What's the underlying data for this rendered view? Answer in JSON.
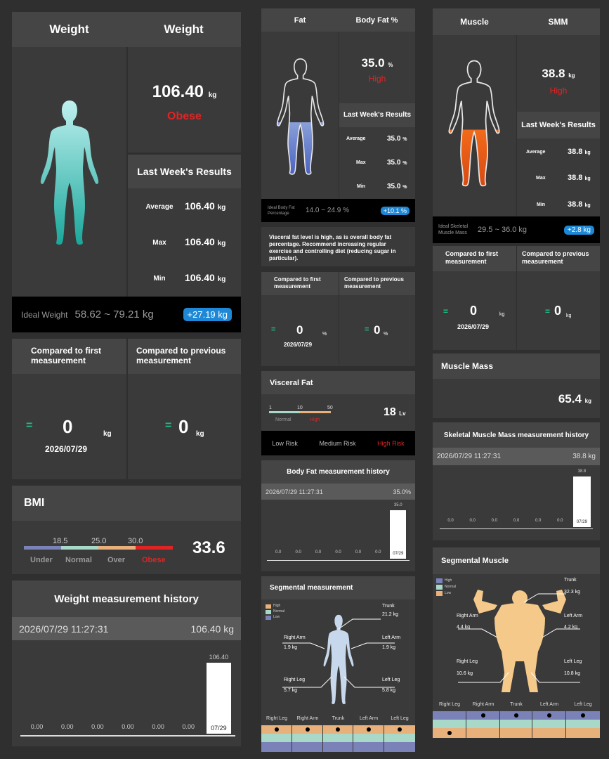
{
  "weight": {
    "title_left": "Weight",
    "title_right": "Weight",
    "value": "106.40",
    "unit": "kg",
    "status": "Obese",
    "last_week_title": "Last Week's Results",
    "avg_label": "Average",
    "avg_value": "106.40",
    "max_label": "Max",
    "max_value": "106.40",
    "min_label": "Min",
    "min_value": "106.40",
    "ideal_label": "Ideal Weight",
    "ideal_range": "58.62 ~ 79.21 kg",
    "diff_badge": "+27.19 kg"
  },
  "weight_compare": {
    "first_label": "Compared to first measurement",
    "prev_label": "Compared to previous measurement",
    "eq": "=",
    "first_value": "0",
    "unit": "kg",
    "date": "2026/07/29",
    "prev_value": "0"
  },
  "bmi": {
    "title": "BMI",
    "ticks": [
      "18.5",
      "25.0",
      "30.0"
    ],
    "labels": [
      "Under",
      "Normal",
      "Over",
      "Obese"
    ],
    "colors": [
      "#7a82b8",
      "#a8d8c8",
      "#e8b07a",
      "#e02424"
    ],
    "value": "33.6"
  },
  "weight_history": {
    "title": "Weight measurement history",
    "datetime": "2026/07/29  11:27:31",
    "latest": "106.40 kg"
  },
  "fat": {
    "title_left": "Fat",
    "title_right": "Body Fat %",
    "value": "35.0",
    "unit": "%",
    "status": "High",
    "last_week_title": "Last Week's Results",
    "avg_label": "Average",
    "avg_value": "35.0",
    "max_label": "Max",
    "max_value": "35.0",
    "min_label": "Min",
    "min_value": "35.0",
    "ideal_label": "Ideal Body Fat Percentage",
    "ideal_range": "14.0 ~ 24.9 %",
    "diff_badge": "+10.1 %",
    "advice": "Visceral fat level is high, as is overall body fat percentage. Recommend increasing regular exercise and controlling diet (reducing sugar in particular)."
  },
  "fat_compare": {
    "first_label": "Compared to first measurement",
    "prev_label": "Compared to previous measurement",
    "eq": "=",
    "first_value": "0",
    "unit": "%",
    "date": "2026/07/29",
    "prev_value": "0"
  },
  "visceral": {
    "title": "Visceral Fat",
    "ticks": [
      "1",
      "10",
      "50"
    ],
    "normal": "Normal",
    "high": "High",
    "value": "18",
    "unit": "Lv",
    "risk_low": "Low Risk",
    "risk_medium": "Medium Risk",
    "risk_high": "High Risk"
  },
  "fat_history": {
    "title": "Body Fat measurement history",
    "datetime": "2026/07/29  11:27:31",
    "latest": "35.0%"
  },
  "segmental_fat": {
    "title": "Segmental measurement",
    "legend": [
      "High",
      "Normal",
      "Low"
    ],
    "trunk_label": "Trunk",
    "trunk_value": "21.2 kg",
    "right_arm_label": "Right Arm",
    "right_arm_value": "1.9 kg",
    "left_arm_label": "Left Arm",
    "left_arm_value": "1.9 kg",
    "right_leg_label": "Right Leg",
    "right_leg_value": "5.7 kg",
    "left_leg_label": "Left Leg",
    "left_leg_value": "5.8 kg",
    "columns": [
      "Right Leg",
      "Right Arm",
      "Trunk",
      "Left Arm",
      "Left Leg"
    ]
  },
  "muscle": {
    "title_left": "Muscle",
    "title_right": "SMM",
    "value": "38.8",
    "unit": "kg",
    "status": "High",
    "last_week_title": "Last Week's Results",
    "avg_label": "Average",
    "avg_value": "38.8",
    "max_label": "Max",
    "max_value": "38.8",
    "min_label": "Min",
    "min_value": "38.8",
    "ideal_label": "Ideal Skeletal Muscle Mass",
    "ideal_range": "29.5 ~ 36.0 kg",
    "diff_badge": "+2.8 kg"
  },
  "muscle_compare": {
    "first_label": "Compared to first measurement",
    "prev_label": "Compared to previous measurement",
    "eq": "=",
    "first_value": "0",
    "unit": "kg",
    "date": "2026/07/29",
    "prev_value": "0"
  },
  "muscle_mass": {
    "title": "Muscle Mass",
    "value": "65.4",
    "unit": "kg"
  },
  "smm_history": {
    "title": "Skeletal Muscle Mass measurement history",
    "datetime": "2026/07/29  11:27:31",
    "latest": "38.8 kg"
  },
  "segmental_muscle": {
    "title": "Segmental Muscle",
    "legend": [
      "High",
      "Normal",
      "Low"
    ],
    "trunk_label": "Trunk",
    "trunk_value": "32.3 kg",
    "right_arm_label": "Right Arm",
    "right_arm_value": "4.4 kg",
    "left_arm_label": "Left Arm",
    "left_arm_value": "4.2 kg",
    "right_leg_label": "Right Leg",
    "right_leg_value": "10.6 kg",
    "left_leg_label": "Left Leg",
    "left_leg_value": "10.8 kg",
    "columns": [
      "Right Leg",
      "Right Arm",
      "Trunk",
      "Left Arm",
      "Left Leg"
    ]
  },
  "chart_data": [
    {
      "type": "bar",
      "title": "Weight measurement history",
      "categories": [
        "",
        "",
        "",
        "",
        "",
        "",
        "07/29"
      ],
      "values": [
        0,
        0,
        0,
        0,
        0,
        0,
        106.4
      ],
      "value_labels": [
        "0.00",
        "0.00",
        "0.00",
        "0.00",
        "0.00",
        "0.00",
        "106.40"
      ]
    },
    {
      "type": "bar",
      "title": "Body Fat measurement history",
      "categories": [
        "",
        "",
        "",
        "",
        "",
        "",
        "07/29"
      ],
      "values": [
        0,
        0,
        0,
        0,
        0,
        0,
        35.0
      ],
      "value_labels": [
        "0.0",
        "0.0",
        "0.0",
        "0.0",
        "0.0",
        "0.0",
        "35.0"
      ]
    },
    {
      "type": "bar",
      "title": "Skeletal Muscle Mass measurement history",
      "categories": [
        "",
        "",
        "",
        "",
        "",
        "",
        "07/29"
      ],
      "values": [
        0,
        0,
        0,
        0,
        0,
        0,
        38.8
      ],
      "value_labels": [
        "0.0",
        "0.0",
        "0.0",
        "0.0",
        "0.0",
        "0.0",
        "38.8"
      ]
    }
  ]
}
